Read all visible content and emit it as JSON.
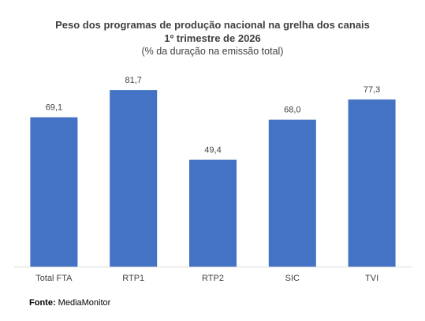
{
  "chart_data": {
    "type": "bar",
    "title": "Peso dos programas de produção nacional na grelha dos canais",
    "title_line2": "1º trimestre de 2026",
    "subtitle": "(% da duração na emissão total)",
    "categories": [
      "Total FTA",
      "RTP1",
      "RTP2",
      "SIC",
      "TVI"
    ],
    "values": [
      69.1,
      81.7,
      49.4,
      68.0,
      77.3
    ],
    "value_labels": [
      "69,1",
      "81,7",
      "49,4",
      "68,0",
      "77,3"
    ],
    "xlabel": "",
    "ylabel": "",
    "ylim": [
      0,
      100
    ],
    "grid": false,
    "legend": "none",
    "bar_color": "#4472C4",
    "axis_color": "#D9D9D9"
  },
  "source": {
    "label": "Fonte",
    "separator": ":",
    "text": " MediaMonitor"
  }
}
